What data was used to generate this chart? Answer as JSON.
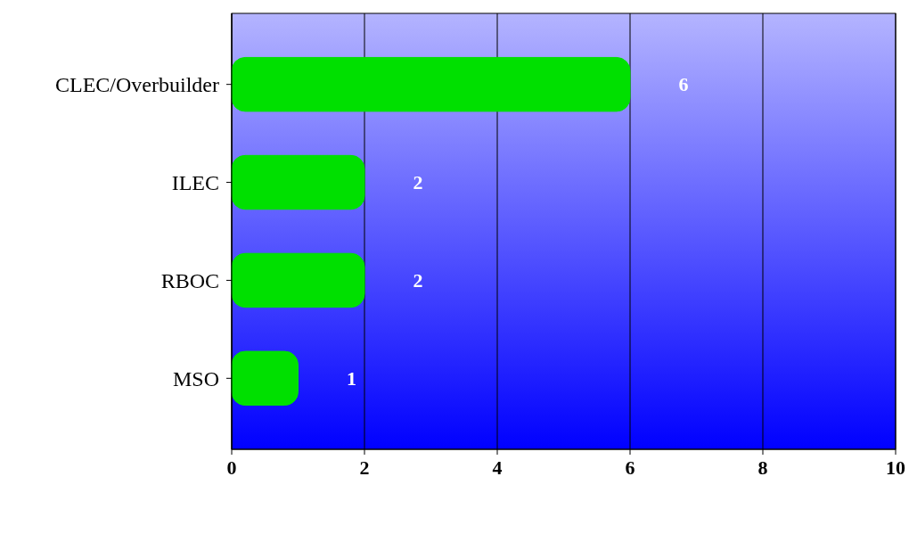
{
  "chart_data": {
    "type": "bar",
    "orientation": "horizontal",
    "categories": [
      "CLEC/Overbuilder",
      "ILEC",
      "RBOC",
      "MSO"
    ],
    "values": [
      6,
      2,
      2,
      1
    ],
    "color": "#00e000",
    "xlim": [
      0,
      10
    ],
    "xticks": [
      0,
      2,
      4,
      6,
      8,
      10
    ],
    "grid": "x",
    "data_labels": true
  }
}
